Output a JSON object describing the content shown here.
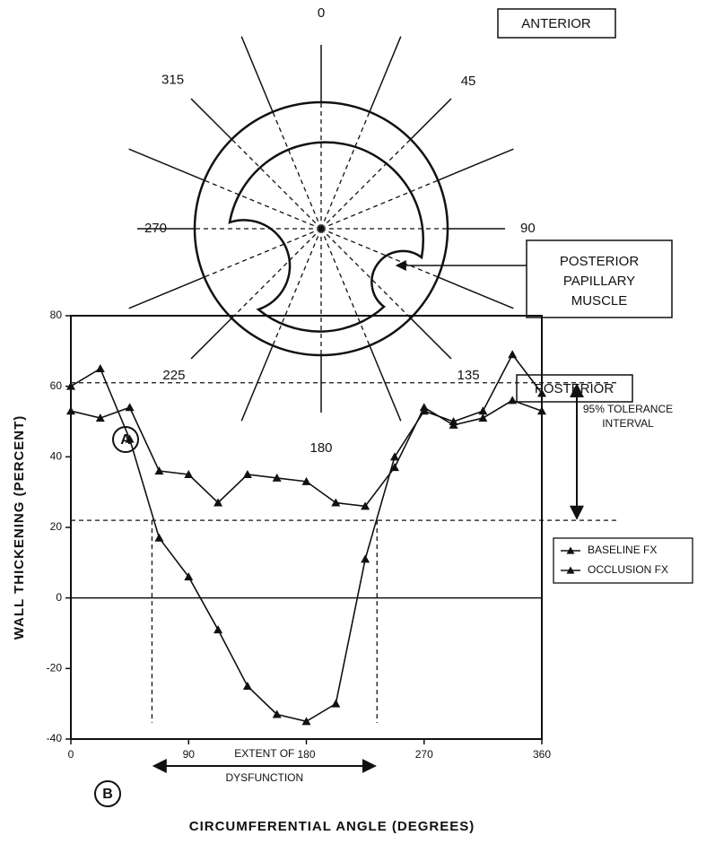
{
  "diagram": {
    "panel": "A",
    "angle_labels": [
      0,
      45,
      90,
      135,
      180,
      225,
      270,
      315
    ],
    "anterior": "ANTERIOR",
    "posterior": "POSTERIOR",
    "muscle_label": [
      "POSTERIOR",
      "PAPILLARY",
      "MUSCLE"
    ]
  },
  "chart_data": {
    "type": "line",
    "panel": "B",
    "x_label": "CIRCUMFERENTIAL ANGLE (DEGREES)",
    "y_label": "WALL THICKENING (PERCENT)",
    "x": [
      0,
      22.5,
      45,
      67.5,
      90,
      112.5,
      135,
      157.5,
      180,
      202.5,
      225,
      247.5,
      270,
      292.5,
      315,
      337.5,
      360
    ],
    "series": [
      {
        "name": "BASELINE FX",
        "color": "#111111",
        "values": [
          53,
          51,
          54,
          36,
          35,
          27,
          35,
          34,
          33,
          27,
          26,
          37,
          54,
          49,
          51,
          56,
          53
        ]
      },
      {
        "name": "OCCLUSION FX",
        "color": "#111111",
        "values": [
          60,
          65,
          45,
          17,
          6,
          -9,
          -25,
          -33,
          -35,
          -30,
          11,
          40,
          53,
          50,
          53,
          69,
          58
        ]
      }
    ],
    "xlim": [
      0,
      360
    ],
    "xticks": [
      0,
      90,
      180,
      270,
      360
    ],
    "ylim": [
      -40,
      80
    ],
    "yticks": [
      -40,
      -20,
      0,
      20,
      40,
      60,
      80
    ],
    "tolerance_interval": {
      "label": [
        "95% TOLERANCE",
        "INTERVAL"
      ],
      "range": [
        22,
        61
      ]
    },
    "dysfunction": {
      "label": [
        "EXTENT OF",
        "DYSFUNCTION"
      ],
      "range": [
        62,
        234
      ]
    },
    "legend": "right"
  }
}
